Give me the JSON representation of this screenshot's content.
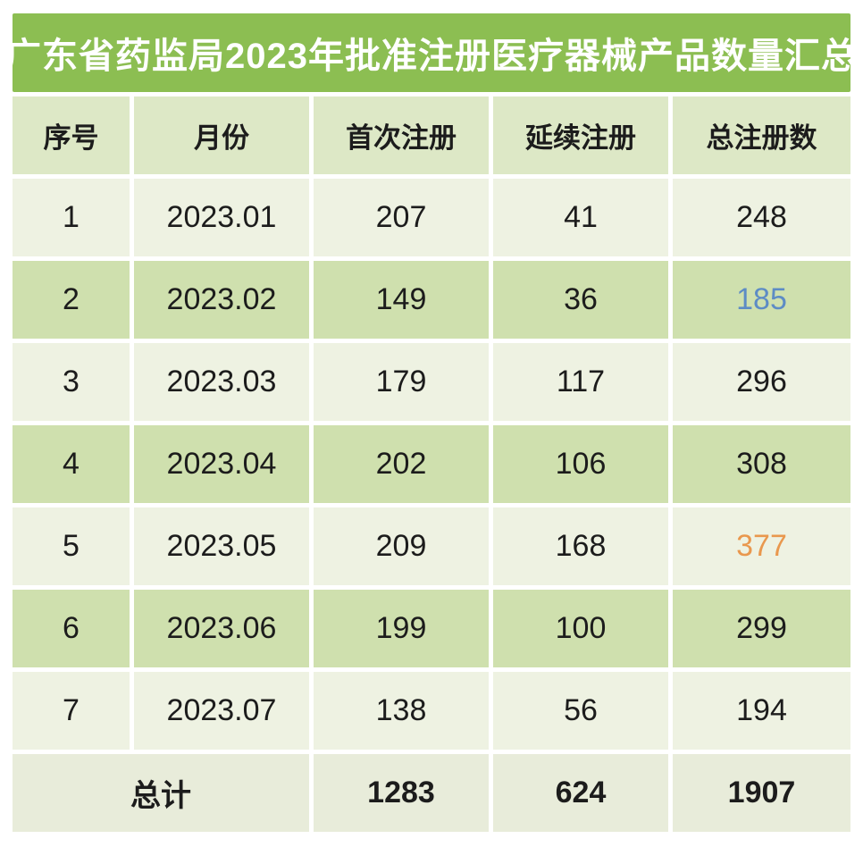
{
  "title": "广东省药监局2023年批准注册医疗器械产品数量汇总",
  "columns": [
    "序号",
    "月份",
    "首次注册",
    "延续注册",
    "总注册数"
  ],
  "rows": [
    {
      "seq": "1",
      "month": "2023.01",
      "first": "207",
      "renewal": "41",
      "total": "248",
      "highlight": null
    },
    {
      "seq": "2",
      "month": "2023.02",
      "first": "149",
      "renewal": "36",
      "total": "185",
      "highlight": "blue"
    },
    {
      "seq": "3",
      "month": "2023.03",
      "first": "179",
      "renewal": "117",
      "total": "296",
      "highlight": null
    },
    {
      "seq": "4",
      "month": "2023.04",
      "first": "202",
      "renewal": "106",
      "total": "308",
      "highlight": null
    },
    {
      "seq": "5",
      "month": "2023.05",
      "first": "209",
      "renewal": "168",
      "total": "377",
      "highlight": "orange"
    },
    {
      "seq": "6",
      "month": "2023.06",
      "first": "199",
      "renewal": "100",
      "total": "299",
      "highlight": null
    },
    {
      "seq": "7",
      "month": "2023.07",
      "first": "138",
      "renewal": "56",
      "total": "194",
      "highlight": null
    }
  ],
  "total_row": {
    "label": "总计",
    "first": "1283",
    "renewal": "624",
    "total": "1907"
  },
  "colors": {
    "title_bg": "#8cbe52",
    "title_text": "#ffffff",
    "header_bg": "#dde8c6",
    "row_light": "#eef2e2",
    "row_dark": "#cfe0ae",
    "total_bg": "#e8ecda",
    "text": "#1c1c1c",
    "highlight_blue": "#5d8cc5",
    "highlight_orange": "#e9984e"
  },
  "chart_data": {
    "type": "table",
    "title": "广东省药监局2023年批准注册医疗器械产品数量汇总",
    "columns": [
      "序号",
      "月份",
      "首次注册",
      "延续注册",
      "总注册数"
    ],
    "rows": [
      [
        1,
        "2023.01",
        207,
        41,
        248
      ],
      [
        2,
        "2023.02",
        149,
        36,
        185
      ],
      [
        3,
        "2023.03",
        179,
        117,
        296
      ],
      [
        4,
        "2023.04",
        202,
        106,
        308
      ],
      [
        5,
        "2023.05",
        209,
        168,
        377
      ],
      [
        6,
        "2023.06",
        199,
        100,
        299
      ],
      [
        7,
        "2023.07",
        138,
        56,
        194
      ]
    ],
    "totals": {
      "label": "总计",
      "首次注册": 1283,
      "延续注册": 624,
      "总注册数": 1907
    },
    "notes": "总注册数 value 185 shown in blue, 377 shown in orange"
  }
}
